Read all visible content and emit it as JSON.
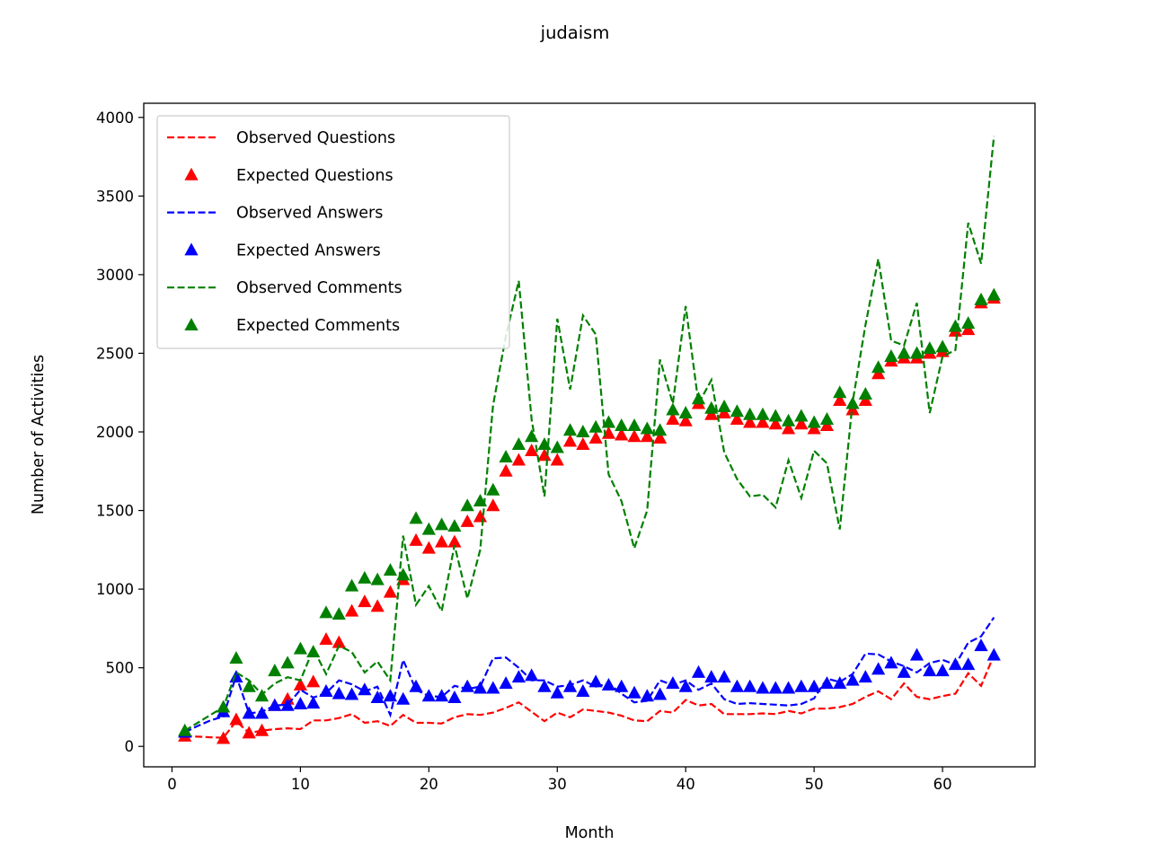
{
  "chart_data": {
    "type": "line",
    "title": "judaism",
    "xlabel": "Month",
    "ylabel": "Number of Activities",
    "xlim": [
      -2.2,
      67.2
    ],
    "ylim": [
      -130,
      4090
    ],
    "xticks": [
      0,
      10,
      20,
      30,
      40,
      50,
      60
    ],
    "yticks": [
      0,
      500,
      1000,
      1500,
      2000,
      2500,
      3000,
      3500,
      4000
    ],
    "grid": false,
    "legend_position": "upper-left",
    "x": [
      1,
      2,
      3,
      4,
      5,
      6,
      7,
      8,
      9,
      10,
      11,
      12,
      13,
      14,
      15,
      16,
      17,
      18,
      19,
      20,
      21,
      22,
      23,
      24,
      25,
      26,
      27,
      28,
      29,
      30,
      31,
      32,
      33,
      34,
      35,
      36,
      37,
      38,
      39,
      40,
      41,
      42,
      43,
      44,
      45,
      46,
      47,
      48,
      49,
      50,
      51,
      52,
      53,
      54,
      55,
      56,
      57,
      58,
      59,
      60,
      61,
      62,
      63,
      64
    ],
    "series": [
      {
        "name": "Observed Questions",
        "style": "dashed",
        "color": "#ff0000",
        "values": [
          65,
          62,
          58,
          55,
          160,
          85,
          100,
          110,
          115,
          110,
          165,
          165,
          180,
          205,
          150,
          160,
          130,
          200,
          150,
          150,
          145,
          185,
          205,
          200,
          215,
          245,
          280,
          220,
          160,
          215,
          185,
          235,
          225,
          215,
          195,
          165,
          160,
          225,
          215,
          295,
          260,
          270,
          205,
          205,
          205,
          210,
          205,
          225,
          210,
          240,
          240,
          250,
          270,
          315,
          350,
          300,
          400,
          315,
          300,
          320,
          335,
          465,
          385,
          580
        ]
      },
      {
        "name": "Expected Questions",
        "style": "triangle",
        "color": "#ff0000",
        "values": [
          65,
          null,
          null,
          50,
          170,
          85,
          100,
          260,
          300,
          390,
          410,
          680,
          660,
          860,
          920,
          890,
          980,
          1060,
          1310,
          1260,
          1300,
          1300,
          1430,
          1460,
          1530,
          1750,
          1820,
          1880,
          1850,
          1820,
          1940,
          1920,
          1960,
          1990,
          1980,
          1970,
          1970,
          1960,
          2080,
          2070,
          2180,
          2110,
          2120,
          2080,
          2060,
          2060,
          2050,
          2020,
          2050,
          2020,
          2040,
          2200,
          2140,
          2200,
          2370,
          2450,
          2470,
          2470,
          2500,
          2510,
          2640,
          2650,
          2820,
          2850
        ]
      },
      {
        "name": "Observed Answers",
        "style": "dashed",
        "color": "#0000ff",
        "values": [
          90,
          130,
          165,
          190,
          450,
          210,
          220,
          260,
          265,
          360,
          310,
          340,
          420,
          395,
          350,
          380,
          200,
          550,
          360,
          320,
          315,
          385,
          365,
          380,
          560,
          565,
          500,
          420,
          420,
          380,
          390,
          420,
          380,
          400,
          335,
          280,
          290,
          420,
          390,
          420,
          360,
          400,
          300,
          270,
          275,
          270,
          265,
          260,
          270,
          305,
          430,
          410,
          460,
          590,
          585,
          540,
          510,
          470,
          530,
          550,
          520,
          660,
          700,
          820
        ]
      },
      {
        "name": "Expected Answers",
        "style": "triangle",
        "color": "#0000ff",
        "values": [
          90,
          null,
          null,
          220,
          440,
          210,
          210,
          260,
          260,
          270,
          275,
          350,
          335,
          330,
          360,
          310,
          320,
          300,
          380,
          320,
          320,
          310,
          380,
          370,
          370,
          400,
          440,
          450,
          380,
          340,
          380,
          350,
          410,
          390,
          380,
          340,
          320,
          330,
          400,
          380,
          470,
          440,
          440,
          380,
          380,
          370,
          370,
          370,
          380,
          380,
          400,
          400,
          420,
          440,
          490,
          530,
          470,
          580,
          480,
          480,
          520,
          520,
          640,
          580
        ]
      },
      {
        "name": "Observed Comments",
        "style": "dashed",
        "color": "#008000",
        "values": [
          100,
          150,
          200,
          250,
          470,
          420,
          330,
          400,
          440,
          420,
          620,
          460,
          640,
          600,
          470,
          540,
          420,
          1340,
          900,
          1020,
          860,
          1280,
          940,
          1250,
          2170,
          2610,
          2960,
          2080,
          1590,
          2720,
          2270,
          2740,
          2620,
          1730,
          1560,
          1260,
          1500,
          2460,
          2180,
          2800,
          2180,
          2330,
          1870,
          1700,
          1590,
          1600,
          1520,
          1820,
          1580,
          1880,
          1800,
          1380,
          2190,
          2680,
          3100,
          2580,
          2550,
          2820,
          2120,
          2480,
          2520,
          3330,
          3070,
          3880
        ]
      },
      {
        "name": "Expected Comments",
        "style": "triangle",
        "color": "#008000",
        "values": [
          100,
          null,
          null,
          250,
          560,
          380,
          320,
          480,
          530,
          620,
          600,
          850,
          840,
          1020,
          1070,
          1060,
          1120,
          1090,
          1450,
          1380,
          1410,
          1400,
          1530,
          1560,
          1630,
          1840,
          1920,
          1970,
          1920,
          1900,
          2010,
          2000,
          2030,
          2060,
          2040,
          2040,
          2020,
          2010,
          2140,
          2120,
          2210,
          2150,
          2160,
          2130,
          2110,
          2110,
          2100,
          2070,
          2100,
          2060,
          2080,
          2250,
          2180,
          2240,
          2410,
          2480,
          2500,
          2500,
          2530,
          2540,
          2670,
          2690,
          2840,
          2870
        ]
      }
    ]
  }
}
